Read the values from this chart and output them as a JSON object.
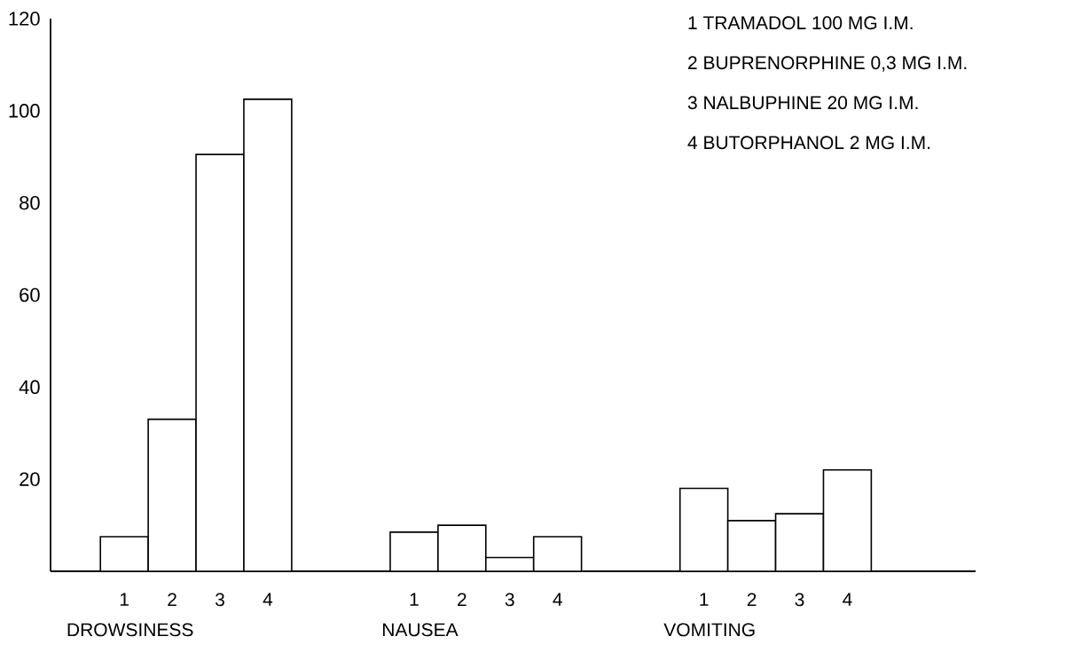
{
  "chart_data": {
    "type": "bar",
    "categories": [
      "DROWSINESS",
      "NAUSEA",
      "VOMITING"
    ],
    "series": [
      {
        "name": "1",
        "color": "#ffffff",
        "values": [
          7.5,
          8.5,
          18
        ]
      },
      {
        "name": "2",
        "color": "#ffffff",
        "values": [
          33,
          10,
          11
        ]
      },
      {
        "name": "3",
        "color": "#ffffff",
        "values": [
          90.5,
          3,
          12.5
        ]
      },
      {
        "name": "4",
        "color": "#ffffff",
        "values": [
          102.5,
          7.5,
          22
        ]
      }
    ],
    "ylim": [
      0,
      120
    ],
    "yticks": [
      20,
      40,
      60,
      80,
      100,
      120
    ],
    "annotations": [
      "1 TRAMADOL 100 MG I.M.",
      "2 BUPRENORPHINE 0,3 MG I.M.",
      "3 NALBUPHINE 20 MG I.M.",
      "4 BUTORPHANOL 2 MG I.M."
    ]
  }
}
